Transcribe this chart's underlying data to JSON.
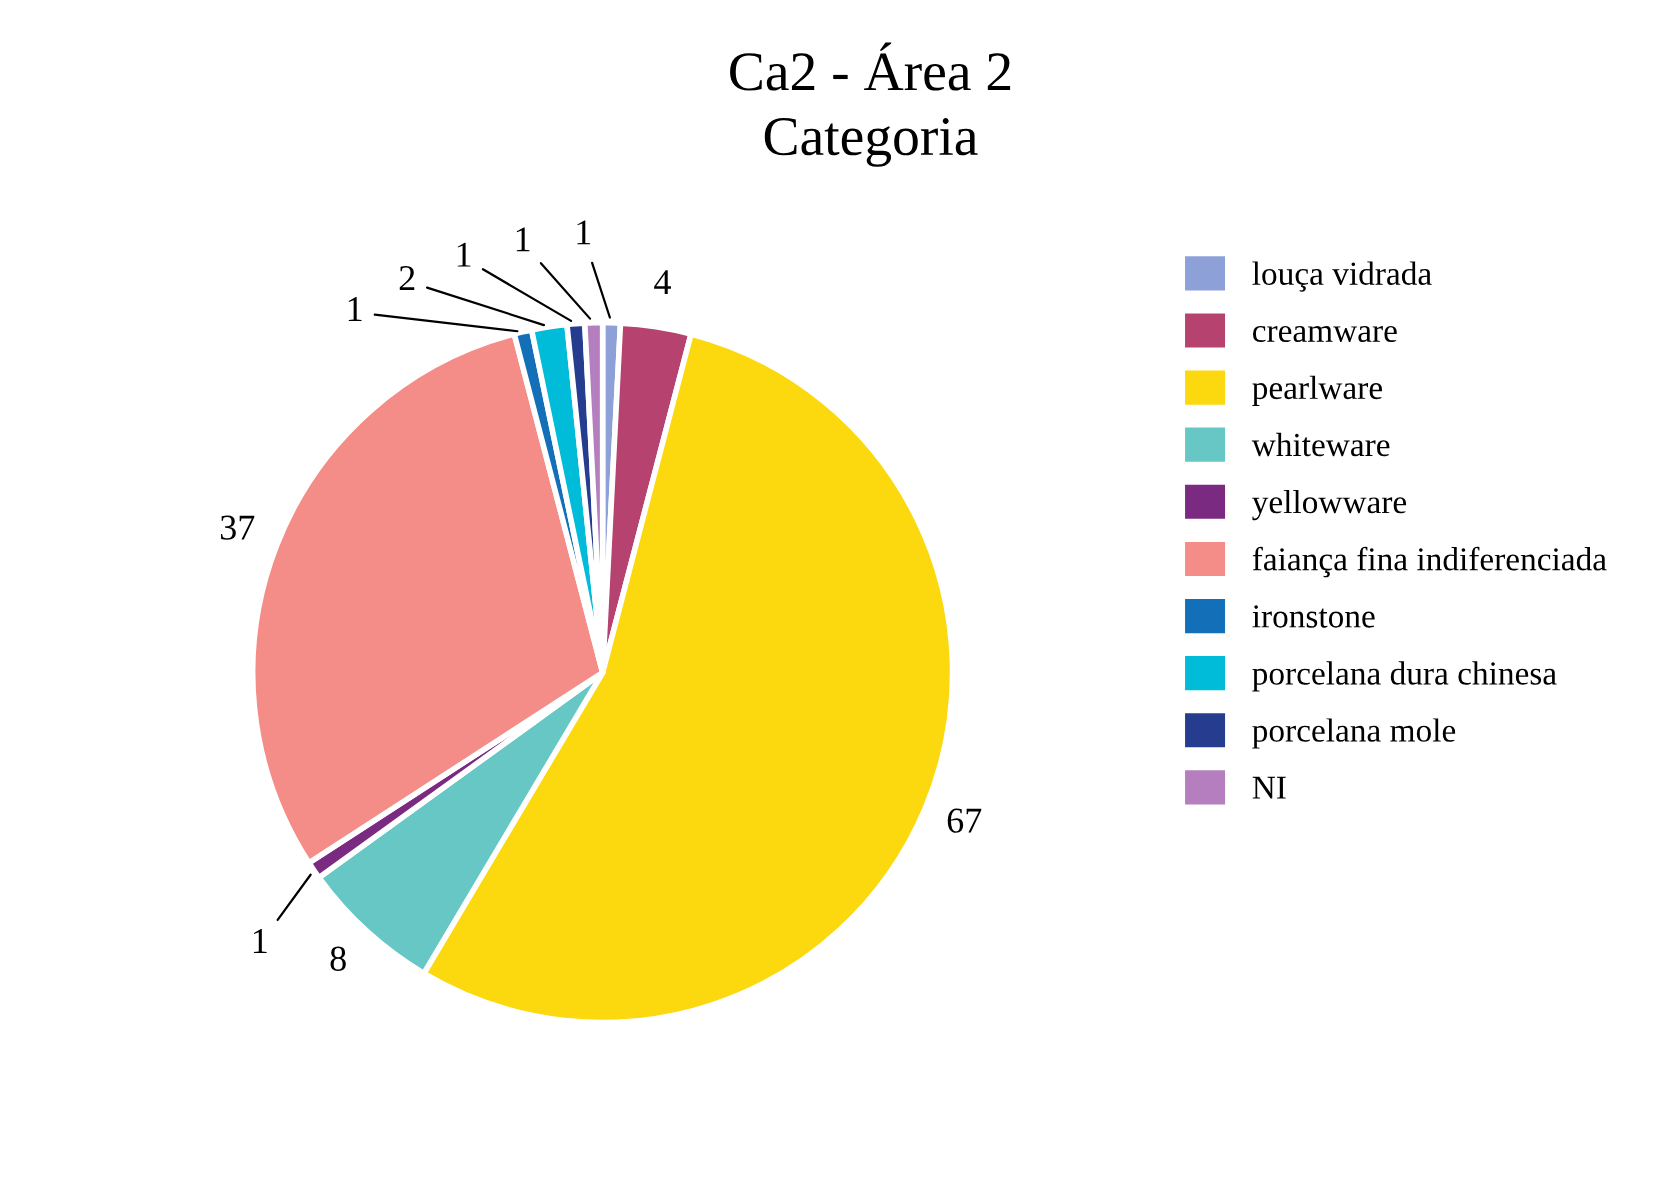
{
  "chart_data": {
    "type": "pie",
    "title": "Ca2 - Área 2",
    "subtitle": "Categoria",
    "categories": [
      "louça vidrada",
      "creamware",
      "pearlware",
      "whiteware",
      "yellowware",
      "faiança fina indiferenciada",
      "ironstone",
      "porcelana dura chinesa",
      "porcelana mole",
      "NI"
    ],
    "values": [
      1,
      4,
      67,
      8,
      1,
      37,
      1,
      2,
      1,
      1
    ],
    "colors": [
      "#8ea0d8",
      "#b5426f",
      "#fcd90f",
      "#66c7c4",
      "#7a2a80",
      "#f48d87",
      "#1370b8",
      "#00bcd8",
      "#263d8f",
      "#b57fbf"
    ],
    "data_labels": true,
    "legend": "right"
  }
}
